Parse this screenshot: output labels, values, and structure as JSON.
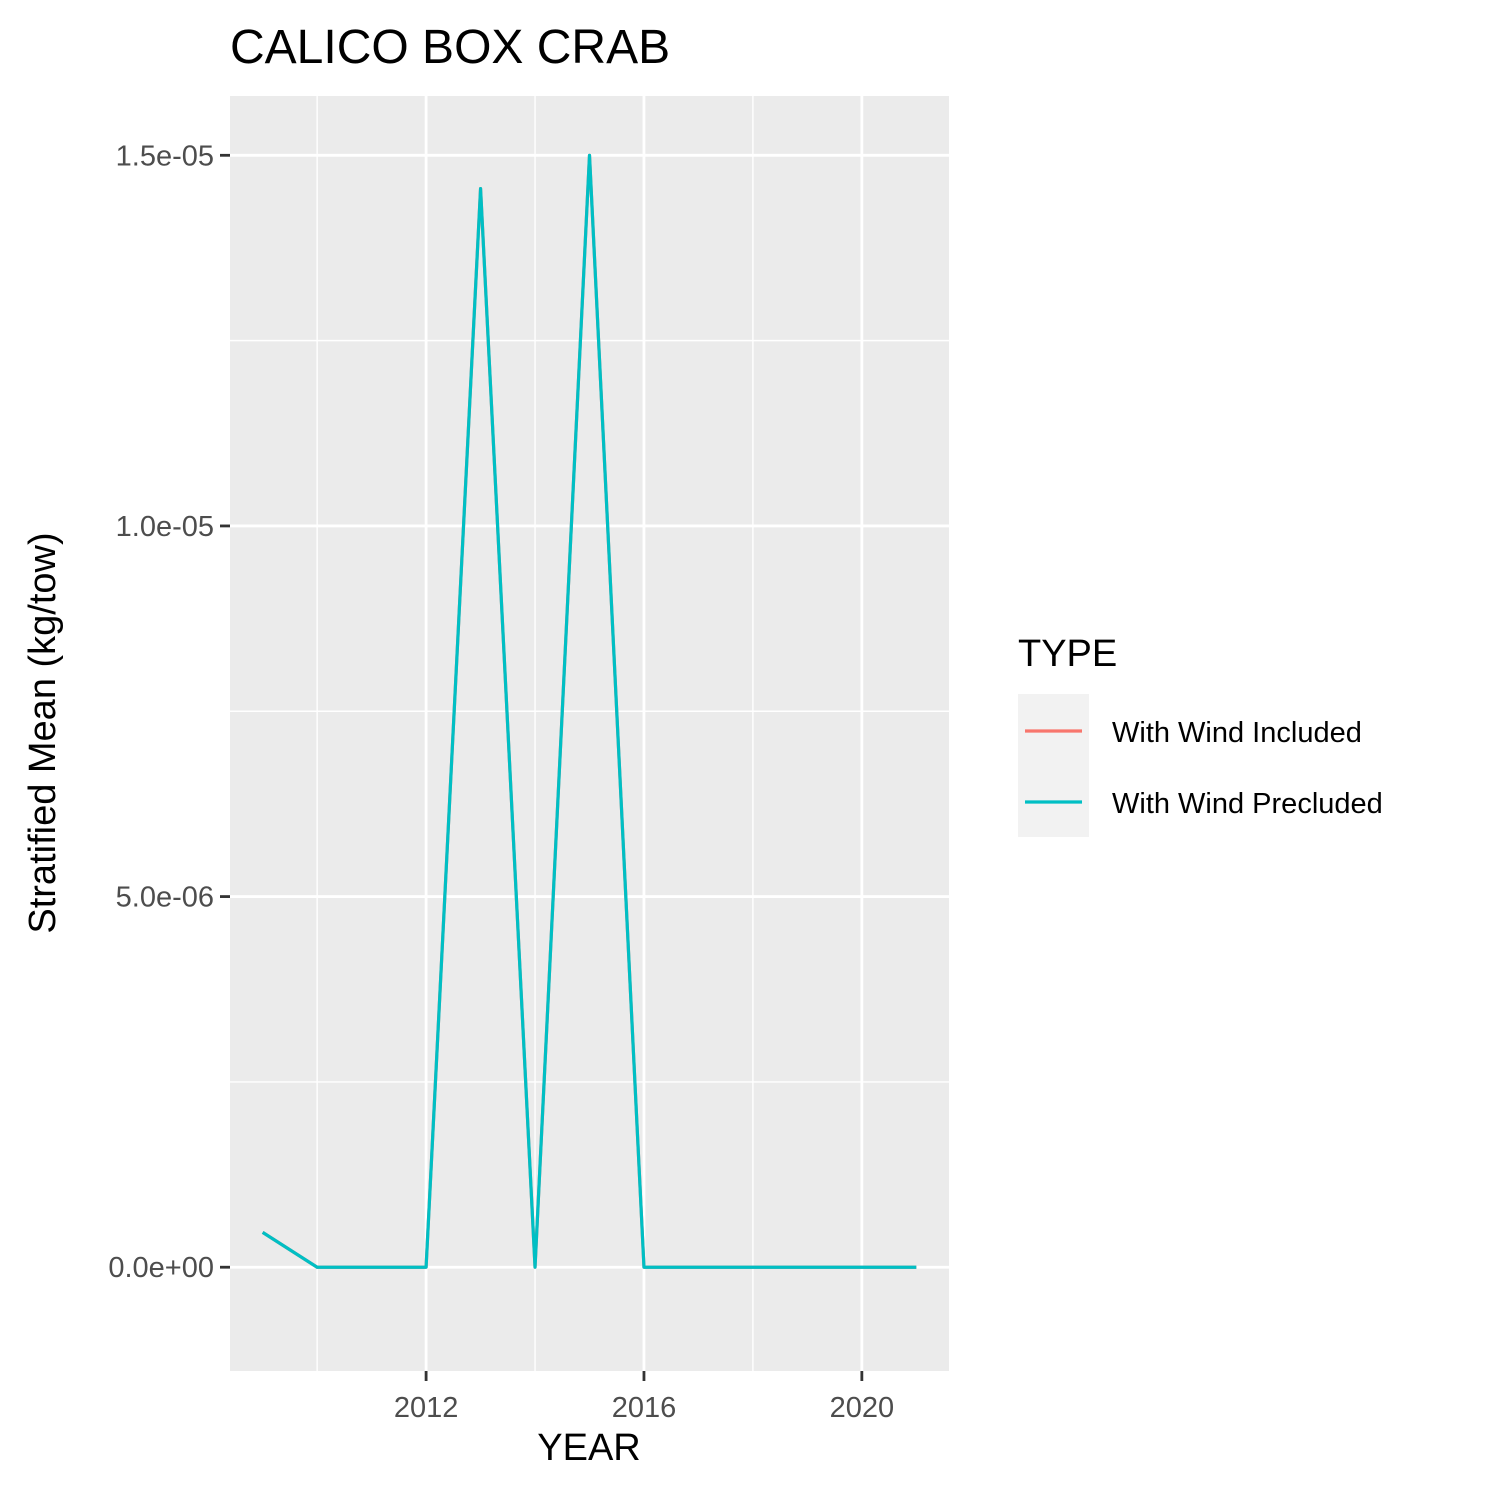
{
  "chart_data": {
    "type": "line",
    "title": "CALICO BOX CRAB",
    "xlabel": "YEAR",
    "ylabel": "Stratified Mean (kg/tow)",
    "xlim": [
      2008.4,
      2021.6
    ],
    "ylim": [
      -1.4e-06,
      1.58e-05
    ],
    "x_ticks": [
      2012,
      2016,
      2020
    ],
    "x_tick_labels": [
      "2012",
      "2016",
      "2020"
    ],
    "x_minor_ticks": [
      2010,
      2014,
      2018
    ],
    "y_ticks": [
      0,
      5e-06,
      1e-05,
      1.5e-05
    ],
    "y_tick_labels": [
      "0.0e+00",
      "5.0e-06",
      "1.0e-05",
      "1.5e-05"
    ],
    "y_minor_ticks": [
      2.5e-06,
      7.5e-06,
      1.25e-05
    ],
    "grid": true,
    "legend": {
      "title": "TYPE",
      "position": "right"
    },
    "x": [
      2009,
      2010,
      2011,
      2012,
      2013,
      2014,
      2015,
      2016,
      2017,
      2018,
      2019,
      2020,
      2021
    ],
    "series": [
      {
        "name": "With Wind Included",
        "color": "#F8766D",
        "values": [
          4.7e-07,
          0,
          0,
          0,
          1.455e-05,
          0,
          1.5e-05,
          0,
          0,
          0,
          0,
          0,
          0
        ]
      },
      {
        "name": "With Wind Precluded",
        "color": "#00BFC4",
        "values": [
          4.7e-07,
          0,
          0,
          0,
          1.455e-05,
          0,
          1.5e-05,
          0,
          0,
          0,
          0,
          0,
          0
        ]
      }
    ]
  }
}
